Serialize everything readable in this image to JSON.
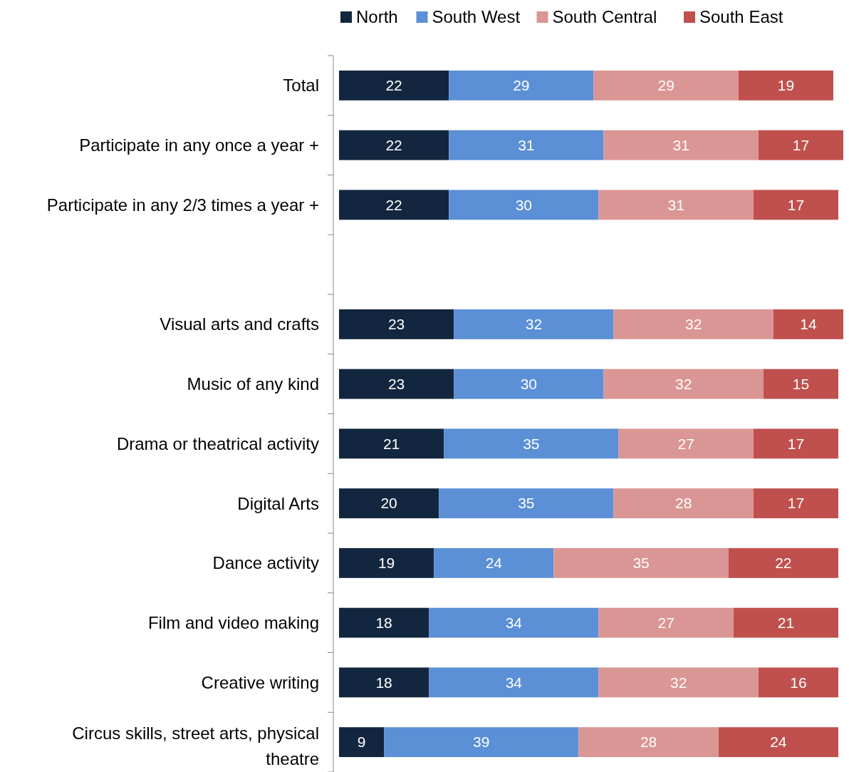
{
  "chart_data": {
    "type": "bar",
    "orientation": "horizontal",
    "stacked": true,
    "data_labels": true,
    "legend": "top",
    "categories": [
      "Total",
      "Participate in any once a year +",
      "Participate in any 2/3 times a year +",
      null,
      "Visual arts and crafts",
      "Music of any kind",
      "Drama or theatrical activity",
      "Digital Arts",
      "Dance activity",
      "Film and video making",
      "Creative writing",
      "Circus skills, street arts, physical theatre"
    ],
    "series": [
      {
        "name": "North",
        "color": "#13263f",
        "values": [
          22,
          22,
          22,
          null,
          23,
          23,
          21,
          20,
          19,
          18,
          18,
          9
        ]
      },
      {
        "name": "South West",
        "color": "#5b8fd6",
        "values": [
          29,
          31,
          30,
          null,
          32,
          30,
          35,
          35,
          24,
          34,
          34,
          39
        ]
      },
      {
        "name": "South Central",
        "color": "#da9694",
        "values": [
          29,
          31,
          31,
          null,
          32,
          32,
          27,
          28,
          35,
          27,
          32,
          28
        ]
      },
      {
        "name": "South East",
        "color": "#c0504d",
        "values": [
          19,
          17,
          17,
          null,
          14,
          15,
          17,
          17,
          22,
          21,
          16,
          24
        ]
      }
    ]
  }
}
